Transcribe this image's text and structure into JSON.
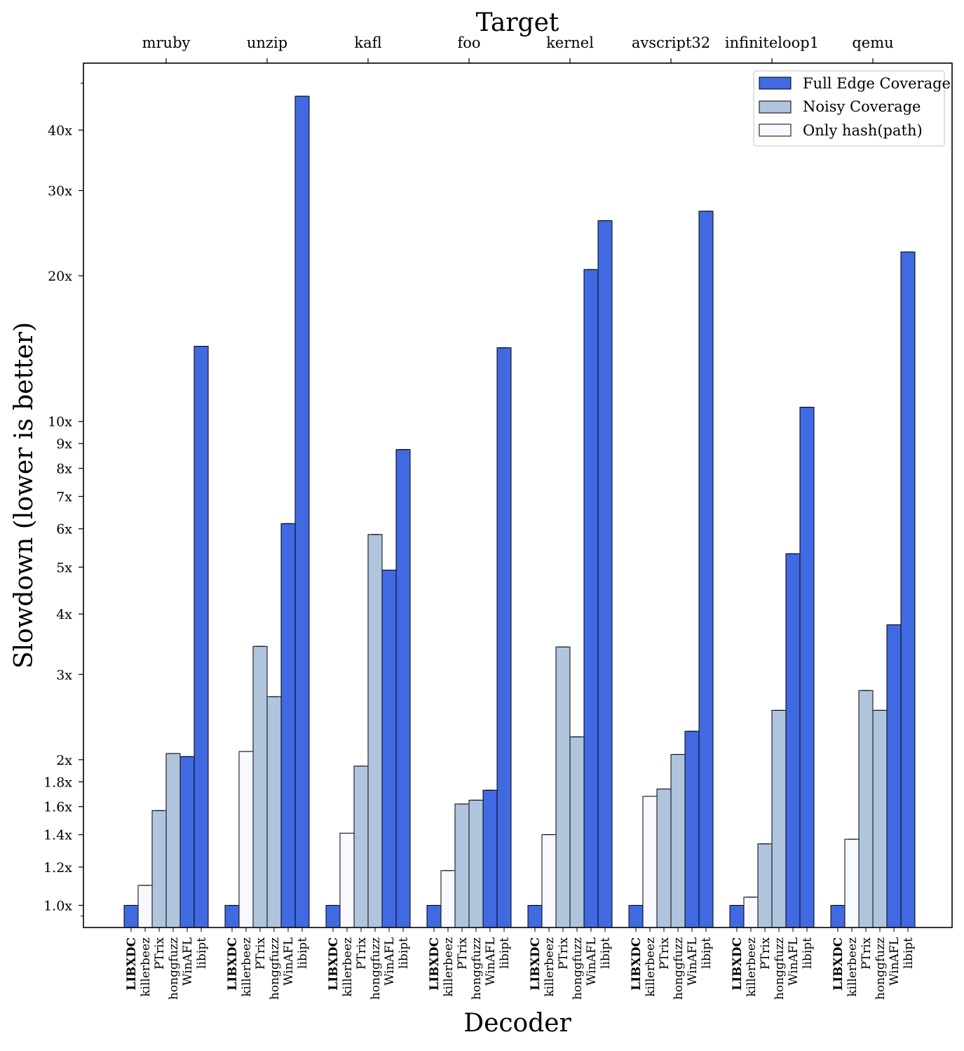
{
  "chart_data": {
    "type": "bar",
    "title": "Target",
    "xlabel": "Decoder",
    "ylabel": "Slowdown (lower is better)",
    "yscale": "log",
    "ylim": [
      0.9,
      55
    ],
    "yticks": [
      {
        "value": 1.0,
        "label": "1.0x"
      },
      {
        "value": 1.2,
        "label": "1.2x"
      },
      {
        "value": 1.4,
        "label": "1.4x"
      },
      {
        "value": 1.6,
        "label": "1.6x"
      },
      {
        "value": 1.8,
        "label": "1.8x"
      },
      {
        "value": 2,
        "label": "2x"
      },
      {
        "value": 3,
        "label": "3x"
      },
      {
        "value": 4,
        "label": "4x"
      },
      {
        "value": 5,
        "label": "5x"
      },
      {
        "value": 6,
        "label": "6x"
      },
      {
        "value": 7,
        "label": "7x"
      },
      {
        "value": 8,
        "label": "8x"
      },
      {
        "value": 9,
        "label": "9x"
      },
      {
        "value": 10,
        "label": "10x"
      },
      {
        "value": 20,
        "label": "20x"
      },
      {
        "value": 30,
        "label": "30x"
      },
      {
        "value": 40,
        "label": "40x"
      }
    ],
    "targets": [
      "mruby",
      "unzip",
      "kafl",
      "foo",
      "kernel",
      "avscript32",
      "infiniteloop1",
      "qemu"
    ],
    "decoders": [
      "LIBXDC",
      "killerbeez",
      "PTrix",
      "honggfuzz",
      "WinAFL",
      "libipt"
    ],
    "decoder_bold": [
      true,
      false,
      false,
      false,
      false,
      false
    ],
    "decoder_coverage": [
      "full",
      "hash",
      "noisy",
      "noisy",
      "full",
      "full"
    ],
    "values": [
      [
        1.0,
        1.1,
        1.57,
        2.06,
        2.03,
        14.3
      ],
      [
        1.0,
        2.08,
        3.43,
        2.7,
        6.15,
        47.0
      ],
      [
        1.0,
        1.41,
        1.94,
        5.84,
        4.93,
        8.75
      ],
      [
        1.0,
        1.18,
        1.62,
        1.65,
        1.73,
        14.2
      ],
      [
        1.0,
        1.4,
        3.42,
        2.23,
        20.6,
        26.0
      ],
      [
        1.0,
        1.68,
        1.74,
        2.05,
        2.29,
        27.2
      ],
      [
        1.0,
        1.04,
        1.34,
        2.53,
        5.33,
        10.7
      ],
      [
        1.0,
        1.37,
        2.78,
        2.53,
        3.8,
        22.4
      ]
    ],
    "legend": [
      {
        "key": "full",
        "label": "Full Edge Coverage",
        "color": "#4169e1"
      },
      {
        "key": "noisy",
        "label": "Noisy Coverage",
        "color": "#b0c4de"
      },
      {
        "key": "hash",
        "label": "Only hash(path)",
        "color": "#f8f8ff"
      }
    ],
    "legend_position": "top-right"
  }
}
